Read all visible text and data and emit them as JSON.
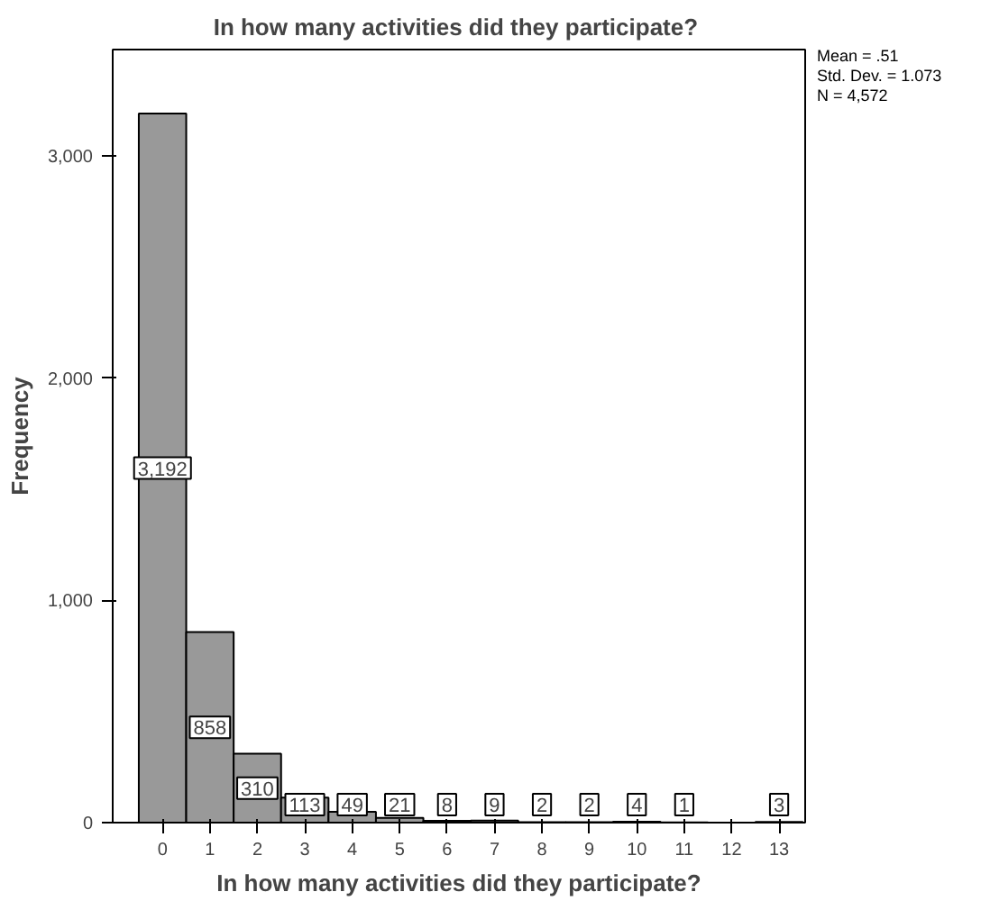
{
  "chart_data": {
    "type": "histogram",
    "title": "In how  many activities did they participate?",
    "xlabel": "In how many activities did they participate?",
    "ylabel": "Frequency",
    "bins": [
      -0.5,
      0.5,
      1.5,
      2.5,
      3.5,
      4.5,
      5.5,
      6.5,
      7.5,
      8.5,
      9.5,
      10.5,
      11.5,
      12.5,
      13.5
    ],
    "values": [
      3192,
      858,
      310,
      113,
      49,
      21,
      8,
      9,
      2,
      2,
      4,
      1,
      0,
      3
    ],
    "value_labels": [
      "3,192",
      "858",
      "310",
      "113",
      "49",
      "21",
      "8",
      "9",
      "2",
      "2",
      "4",
      "1",
      null,
      "3"
    ],
    "color": "#999999",
    "xlim": [
      -1.05,
      13.55
    ],
    "xticks": [
      0,
      1,
      2,
      3,
      4,
      5,
      6,
      7,
      8,
      9,
      10,
      11,
      12,
      13
    ],
    "ylim": [
      0,
      3480
    ],
    "yticks": [
      0,
      {
        "value": 1000,
        "label": "1,000"
      },
      {
        "value": 2000,
        "label": "2,000"
      },
      {
        "value": 3000,
        "label": "3,000"
      }
    ],
    "grid": false,
    "annotations": [
      "Mean = .51",
      "Std. Dev. = 1.073",
      "N = 4,572"
    ]
  }
}
